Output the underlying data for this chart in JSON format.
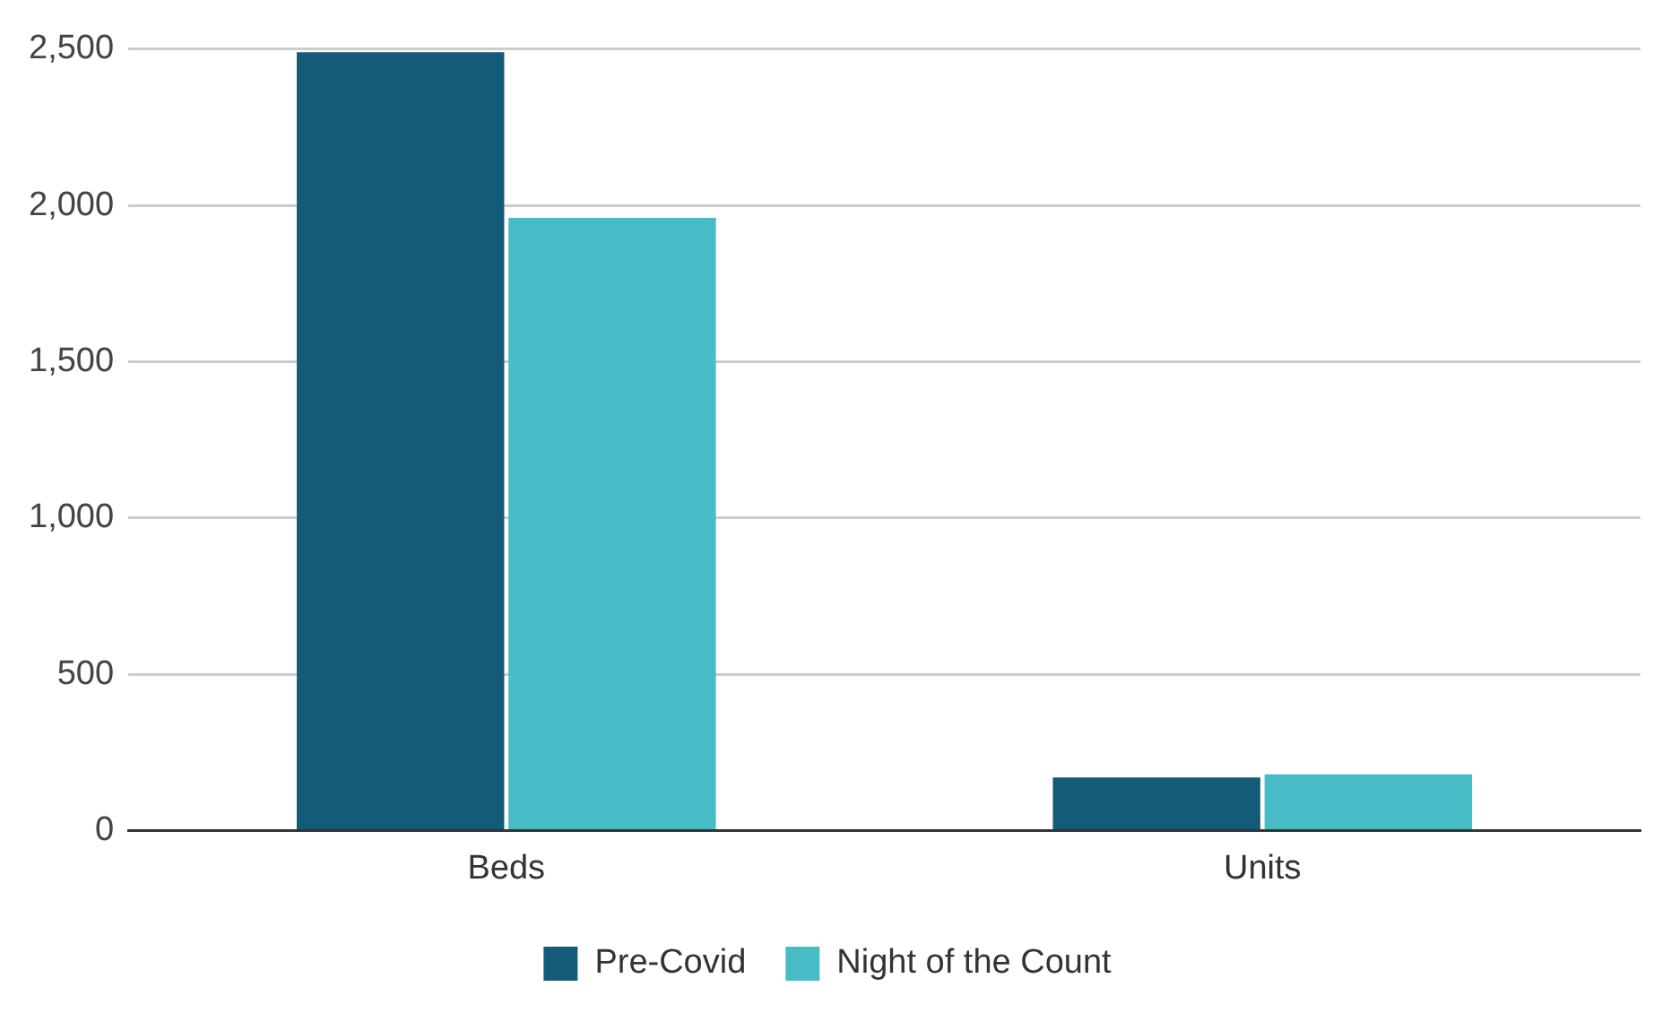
{
  "chart_data": {
    "type": "bar",
    "categories": [
      "Beds",
      "Units"
    ],
    "series": [
      {
        "name": "Pre-Covid",
        "color": "#145b7a",
        "values": [
          2490,
          170
        ]
      },
      {
        "name": "Night of the Count",
        "color": "#47bcc6",
        "values": [
          1960,
          180
        ]
      }
    ],
    "ylim": [
      0,
      2500
    ],
    "yticks": [
      {
        "value": 0,
        "label": "0"
      },
      {
        "value": 500,
        "label": "500"
      },
      {
        "value": 1000,
        "label": "1,000"
      },
      {
        "value": 1500,
        "label": "1,500"
      },
      {
        "value": 2000,
        "label": "2,000"
      },
      {
        "value": 2500,
        "label": "2,500"
      }
    ],
    "grid": "y",
    "legend": "bottom"
  }
}
